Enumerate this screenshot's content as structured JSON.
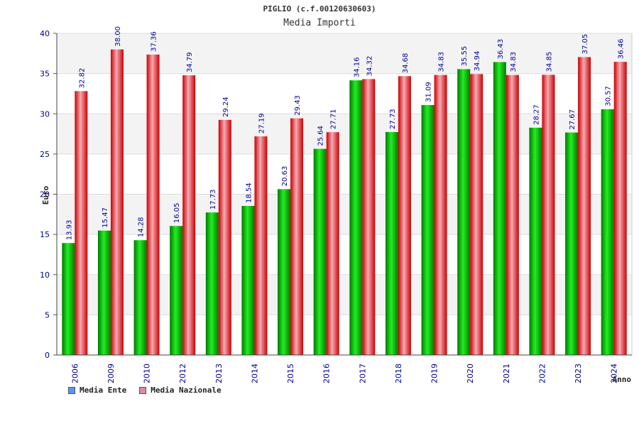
{
  "chart_data": {
    "type": "bar",
    "title": "PIGLIO (c.f.00120630603)",
    "subtitle": "Media Importi",
    "ylabel": "Euro",
    "xlabel": "Anno",
    "ylim": [
      0,
      40
    ],
    "yticks": [
      0,
      5,
      10,
      15,
      20,
      25,
      30,
      35,
      40
    ],
    "categories": [
      "2006",
      "2009",
      "2010",
      "2012",
      "2013",
      "2014",
      "2015",
      "2016",
      "2017",
      "2018",
      "2019",
      "2020",
      "2021",
      "2022",
      "2023",
      "2024"
    ],
    "series": [
      {
        "name": "Media Ente",
        "color": "#00cc00",
        "legend_color": "#5599ee",
        "values": [
          13.93,
          15.47,
          14.28,
          16.05,
          17.73,
          18.54,
          20.63,
          25.64,
          34.16,
          27.73,
          31.09,
          35.55,
          36.43,
          28.27,
          27.67,
          30.57
        ],
        "labels": [
          "13.93",
          "15.47",
          "14.28",
          "16.05",
          "17.73",
          "18.54",
          "20.63",
          "25.64",
          "34.16",
          "27.73",
          "31.09",
          "35.55",
          "36.43",
          "28.27",
          "27.67",
          "30.57"
        ]
      },
      {
        "name": "Media Nazionale",
        "color": "#ee1122",
        "legend_color": "#dd88aa",
        "values": [
          32.82,
          38.0,
          37.36,
          34.79,
          29.24,
          27.19,
          29.43,
          27.71,
          34.32,
          34.68,
          34.83,
          34.94,
          34.83,
          34.85,
          37.05,
          36.46
        ],
        "labels": [
          "32.82",
          "38.00",
          "37.36",
          "34.79",
          "29.24",
          "27.19",
          "29.43",
          "27.71",
          "34.32",
          "34.68",
          "34.83",
          "34.94",
          "34.83",
          "34.85",
          "37.05",
          "36.46"
        ]
      }
    ],
    "grid": true,
    "legend_position": "bottom-left"
  }
}
